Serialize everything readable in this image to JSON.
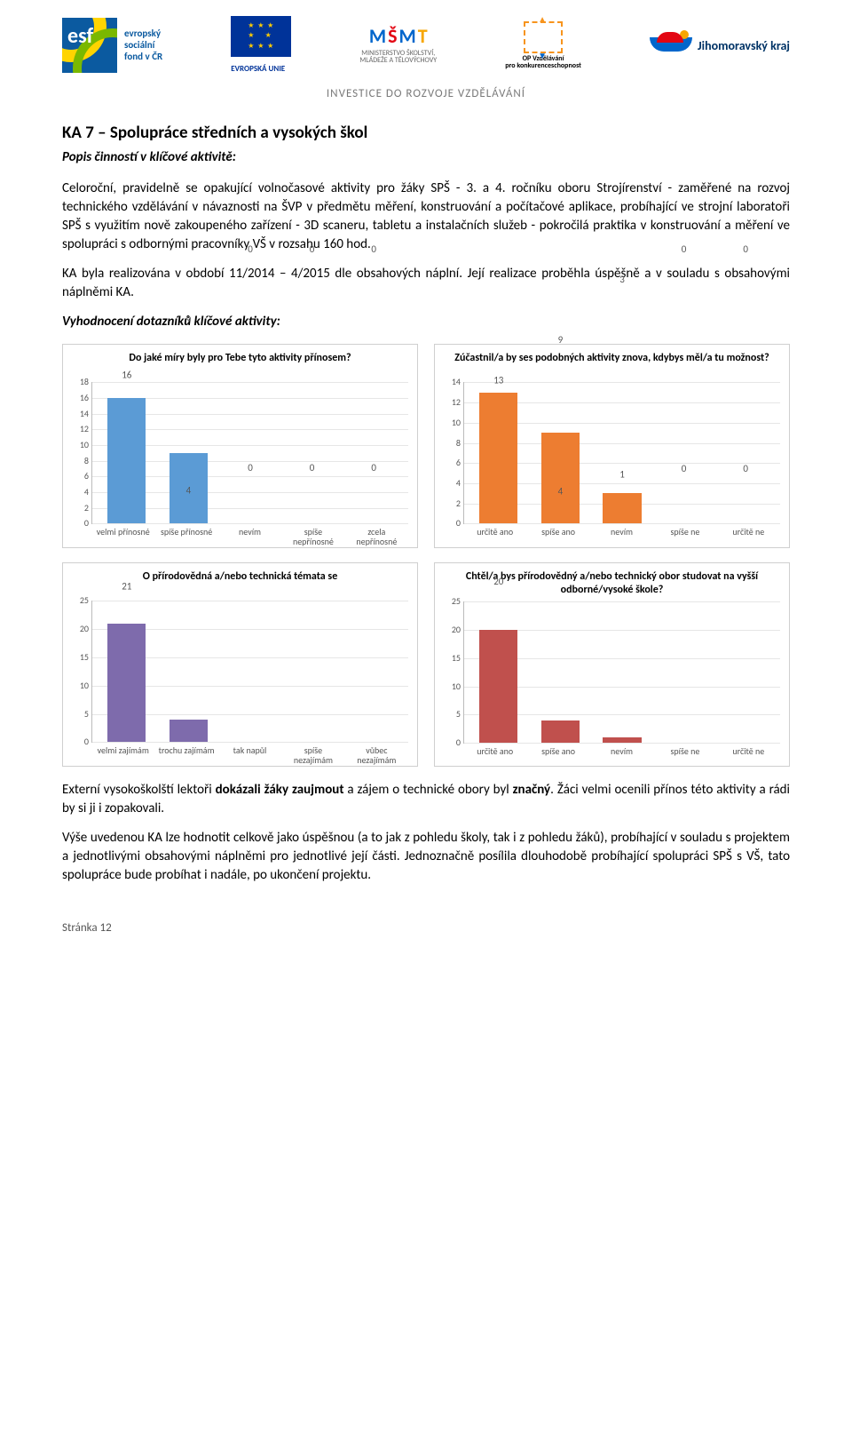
{
  "header": {
    "esf_lines": "evropský\nsociální\nfond v ČR",
    "eu_label": "EVROPSKÁ UNIE",
    "msmt_lines": "MINISTERSTVO ŠKOLSTVÍ,\nMLÁDEŽE A TĚLOVÝCHOVY",
    "opvk_lines": "OP Vzdělávání\npro konkurenceschopnost",
    "jmk": "Jihomoravský kraj",
    "investice": "INVESTICE DO ROZVOJE VZDĚLÁVÁNÍ"
  },
  "title": "KA 7 – Spolupráce středních a vysokých škol",
  "subhead": "Popis činností v klíčové aktivitě:",
  "para1": "Celoroční, pravidelně se opakující volnočasové aktivity pro žáky SPŠ - 3. a 4. ročníku oboru Strojírenství - zaměřené na rozvoj technického vzdělávání v návaznosti na ŠVP v předmětu měření, konstruování a počítačové aplikace, probíhající ve strojní laboratoři SPŠ s využitím nově zakoupeného zařízení - 3D scaneru, tabletu a instalačních služeb - pokročilá praktika v konstruování a měření ve spolupráci s odbornými pracovníky VŠ v rozsahu 160 hod.",
  "para2": "KA byla realizována v období 11/2014 – 4/2015 dle obsahových náplní. Její realizace proběhla úspěšně a v souladu s obsahovými náplněmi KA.",
  "eval_head": "Vyhodnocení dotazníků klíčové aktivity:",
  "charts": {
    "c1": {
      "title": "Do jaké míry byly pro Tebe tyto aktivity přínosem?",
      "ymax": 18,
      "ytick_step": 2,
      "bar_color": "#5b9bd5",
      "categories": [
        "velmi přínosné",
        "spíše přínosné",
        "nevím",
        "spíše\nnepřínosné",
        "zcela\nnepřínosné"
      ],
      "values": [
        16,
        9,
        0,
        0,
        0
      ]
    },
    "c2": {
      "title": "Zúčastnil/a by ses podobných aktivity znova, kdybys měl/a tu možnost?",
      "ymax": 14,
      "ytick_step": 2,
      "bar_color": "#ed7d31",
      "categories": [
        "určitě ano",
        "spíše ano",
        "nevím",
        "spíše ne",
        "určitě ne"
      ],
      "values": [
        13,
        9,
        3,
        0,
        0
      ]
    },
    "c3": {
      "title": "O přírodovědná a/nebo technická témata se",
      "ymax": 25,
      "ytick_step": 5,
      "bar_color": "#7e6bac",
      "categories": [
        "velmi zajímám",
        "trochu zajímám",
        "tak napůl",
        "spíše\nnezajímám",
        "vůbec\nnezajímám"
      ],
      "values": [
        21,
        4,
        0,
        0,
        0
      ]
    },
    "c4": {
      "title": "Chtěl/a bys přírodovědný a/nebo technický obor studovat na vyšší odborné/vysoké škole?",
      "ymax": 25,
      "ytick_step": 5,
      "bar_color": "#c0504d",
      "categories": [
        "určitě ano",
        "spíše ano",
        "nevím",
        "spíše ne",
        "určitě ne"
      ],
      "values": [
        20,
        4,
        1,
        0,
        0
      ]
    }
  },
  "para3_pre": "Externí vysokoškolští lektoři ",
  "para3_b1": "dokázali žáky zaujmout",
  "para3_mid": " a zájem o technické obory byl ",
  "para3_b2": "značný",
  "para3_post": ". Žáci velmi ocenili přínos této aktivity a rádi by si ji i zopakovali.",
  "para4": "Výše uvedenou KA lze hodnotit celkově jako úspěšnou (a to jak z pohledu školy, tak i z pohledu žáků), probíhající v souladu s projektem a jednotlivými obsahovými náplněmi pro jednotlivé její části. Jednoznačně posílila dlouhodobě probíhající spolupráci SPŠ s VŠ, tato spolupráce bude probíhat i nadále, po ukončení projektu.",
  "footer": "Stránka 12"
}
